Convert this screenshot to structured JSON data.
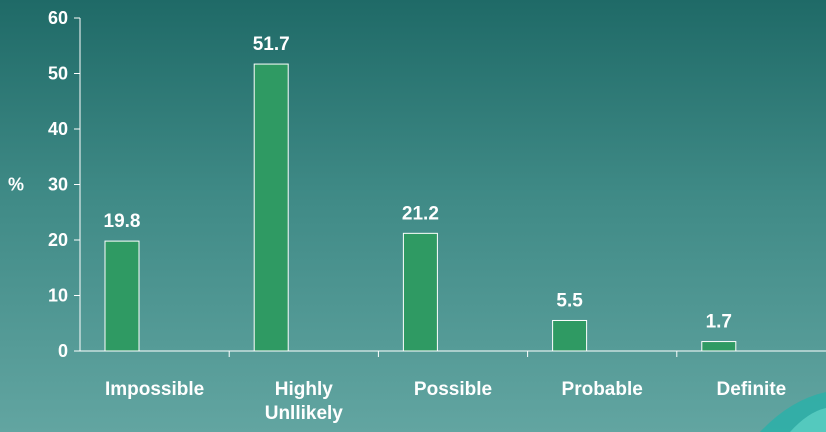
{
  "chart_data": {
    "type": "bar",
    "title": "",
    "xlabel": "",
    "ylabel": "%",
    "ylim": [
      0,
      60
    ],
    "yticks": [
      0,
      10,
      20,
      30,
      40,
      50,
      60
    ],
    "grid": false,
    "categories": [
      [
        "Impossible"
      ],
      [
        "Highly",
        "Unllikely"
      ],
      [
        "Possible"
      ],
      [
        "Probable"
      ],
      [
        "Definite"
      ]
    ],
    "values": [
      19.8,
      51.7,
      21.2,
      5.5,
      1.7
    ],
    "data_labels": [
      "19.8",
      "51.7",
      "21.2",
      "5.5",
      "1.7"
    ],
    "bar_color": "#2f9a63",
    "bar_outline_color": "#ffffff",
    "axis_color": "#ffffff",
    "text_color": "#ffffff"
  }
}
